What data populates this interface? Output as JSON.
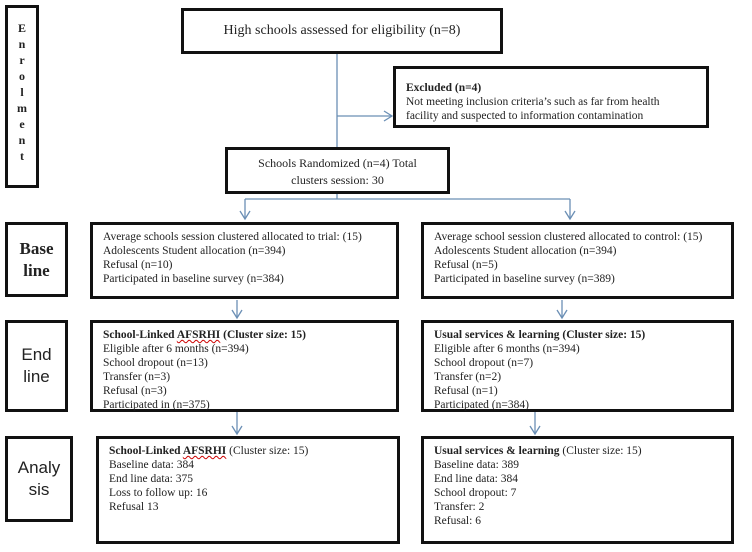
{
  "stages": {
    "enrolment": "E n r o l m e n t",
    "baseline": [
      "Base",
      "line"
    ],
    "endline": [
      "End",
      "line"
    ],
    "analysis": [
      "Analy",
      "sis"
    ]
  },
  "enrolment": {
    "assessed": "High schools assessed for eligibility  (n=8)",
    "excluded_title": "Excluded (n=4)",
    "excluded_lines": [
      "Not meeting inclusion criteria’s such as far from health",
      "facility and suspected to information contamination"
    ],
    "randomized_lines": [
      "Schools Randomized (n=4) Total",
      "clusters session: 30"
    ]
  },
  "baseline": {
    "trial": [
      "Average schools session clustered allocated to trial: (15)",
      "Adolescents Student allocation (n=394)",
      "Refusal (n=10)",
      "Participated in baseline survey (n=384)"
    ],
    "control": [
      "Average school session clustered allocated to control: (15)",
      "Adolescents Student allocation (n=394)",
      "Refusal (n=5)",
      "Participated in baseline survey (n=389)"
    ]
  },
  "endline": {
    "trial": {
      "title_pre": "School-Linked ",
      "title_mark": "AFSRHI",
      "title_post": " (Cluster size: 15)",
      "lines": [
        "Eligible after 6 months (n=394)",
        "School dropout (n=13)",
        "Transfer (n=3)",
        "Refusal (n=3)",
        "Participated in (n=375)"
      ]
    },
    "control": {
      "title": "Usual services & learning (Cluster size: 15)",
      "lines": [
        "Eligible after 6 months (n=394)",
        "School dropout (n=7)",
        "Transfer (n=2)",
        "Refusal (n=1)",
        "Participated (n=384)"
      ]
    }
  },
  "analysis": {
    "trial": {
      "title_pre": "School-Linked ",
      "title_mark": "AFSRHI",
      "title_post": " (Cluster size: 15)",
      "lines": [
        "Baseline data: 384",
        "End line data: 375",
        "Loss to follow up: 16",
        "Refusal 13"
      ]
    },
    "control": {
      "title": "Usual services & learning",
      "title_post": " (Cluster size: 15)",
      "lines": [
        "Baseline data: 389",
        "End line data: 384",
        "School dropout: 7",
        "Transfer: 2",
        "Refusal: 6"
      ]
    }
  },
  "colors": {
    "connector": "#6b8fb5",
    "border": "#111111"
  }
}
